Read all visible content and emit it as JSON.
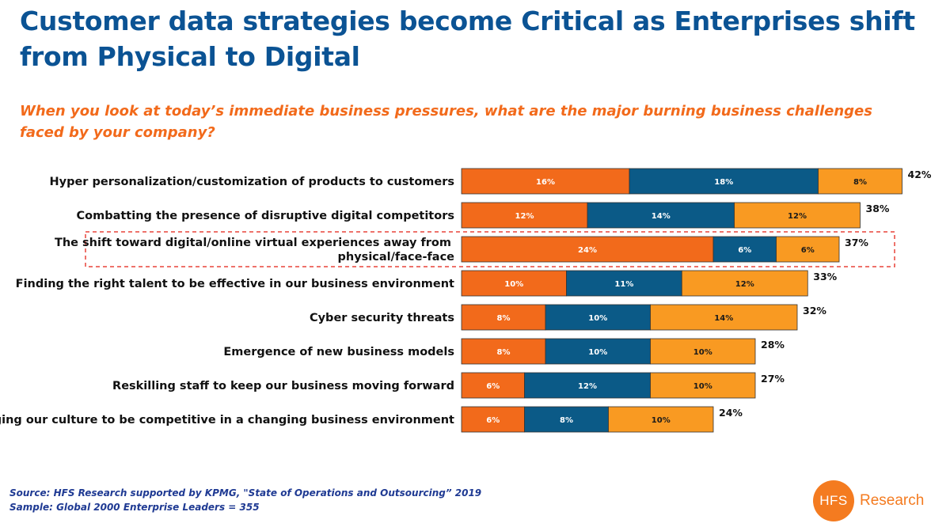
{
  "title": "Customer data strategies become Critical as Enterprises shift from Physical to Digital",
  "subtitle": "When you look at today’s immediate business pressures, what are the major burning business challenges faced by your company?",
  "chart_data": {
    "type": "bar",
    "orientation": "horizontal",
    "stacked": true,
    "categories": [
      "Hyper personalization/customization of products to customers",
      "Combatting the presence of disruptive digital competitors",
      "The shift toward digital/online virtual experiences away from physical/face-face",
      "Finding the right talent to be effective in our business environment",
      "Cyber security threats",
      "Emergence of new business models",
      "Reskilling staff to keep our business moving forward",
      "Changing our culture to be competitive in a changing business environment"
    ],
    "series": [
      {
        "color": "#f26a1b",
        "values": [
          16,
          12,
          24,
          10,
          8,
          8,
          6,
          6
        ],
        "labels": [
          "16%",
          "12%",
          "24%",
          "10%",
          "8%",
          "8%",
          "6%",
          "6%"
        ]
      },
      {
        "color": "#0b5a87",
        "values": [
          18,
          14,
          6,
          11,
          10,
          10,
          12,
          8
        ],
        "labels": [
          "18%",
          "14%",
          "6%",
          "11%",
          "10%",
          "10%",
          "12%",
          "8%"
        ]
      },
      {
        "color": "#f99a22",
        "values": [
          8,
          12,
          6,
          12,
          14,
          10,
          10,
          10
        ],
        "labels": [
          "8%",
          "12%",
          "6%",
          "12%",
          "14%",
          "10%",
          "10%",
          "10%"
        ]
      }
    ],
    "totals": [
      "42%",
      "38%",
      "37%",
      "33%",
      "32%",
      "28%",
      "27%",
      "24%"
    ],
    "highlighted_category": "The shift toward digital/online virtual experiences away from physical/face-face",
    "highlight_color": "#e8443a",
    "legend": "none",
    "grid": false
  },
  "source": {
    "line1": "Source: HFS Research supported by KPMG, \"State of Operations and Outsourcing” 2019",
    "line2": "Sample: Global 2000 Enterprise Leaders = 355"
  },
  "logo": {
    "mark": "HFS",
    "text": "Research",
    "color": "#f47b20"
  }
}
